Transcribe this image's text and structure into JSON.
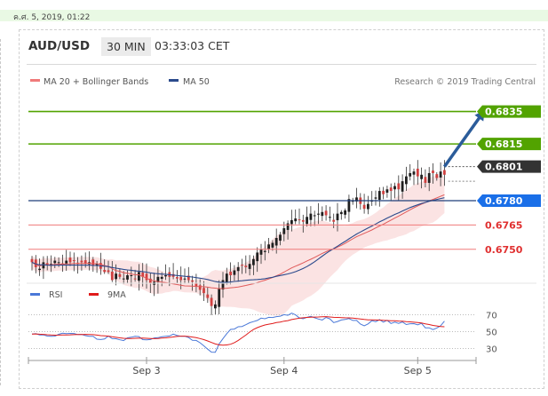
{
  "timestamp": "ค.ศ. 5, 2019, 01:22",
  "header": {
    "symbol": "AUD/USD",
    "timeframe": "30 MIN",
    "clock": "03:33:03 CET"
  },
  "legend": {
    "ma20_label": "MA 20 + Bollinger Bands",
    "ma50_label": "MA 50",
    "credit": "Research © 2019 Trading Central"
  },
  "colors": {
    "resistance": "#52a300",
    "support": "#f07a7a",
    "pivot": "#1a6fe8",
    "ma50": "#2b4a8c",
    "ma20": "#e05a5a",
    "band": "#fbe3e3",
    "rsi": "#4a78d8",
    "rsi_ma": "#e01b1b",
    "arrow": "#2b5c9a",
    "current_badge": "#333333"
  },
  "chart_data": [
    {
      "type": "candlestick",
      "ylim": [
        0.6734,
        0.6843
      ],
      "x_tick_labels": [
        "Sep 3",
        "Sep 4",
        "Sep 5"
      ],
      "x_tick_positions": [
        30,
        66,
        101
      ],
      "n_bars": 109,
      "key_levels": [
        {
          "value": 0.6835,
          "label": "0.6835",
          "kind": "resistance"
        },
        {
          "value": 0.6815,
          "label": "0.6815",
          "kind": "resistance"
        },
        {
          "value": 0.6801,
          "label": "0.6801",
          "kind": "current"
        },
        {
          "value": 0.678,
          "label": "0.6780",
          "kind": "pivot"
        },
        {
          "value": 0.6765,
          "label": "0.6765",
          "kind": "support"
        },
        {
          "value": 0.675,
          "label": "0.6750",
          "kind": "support"
        }
      ],
      "arrow": {
        "from_bar": 108,
        "from_value": 0.6801,
        "to_bar": 118,
        "to_value": 0.6834
      },
      "close": [
        0.6742,
        0.6739,
        0.6738,
        0.6742,
        0.674,
        0.6741,
        0.6743,
        0.6742,
        0.6741,
        0.6743,
        0.6742,
        0.6743,
        0.6741,
        0.6742,
        0.6741,
        0.6742,
        0.674,
        0.6741,
        0.6738,
        0.6736,
        0.6736,
        0.6731,
        0.6735,
        0.6733,
        0.6732,
        0.6734,
        0.6734,
        0.6732,
        0.6736,
        0.6733,
        0.6731,
        0.6729,
        0.673,
        0.6733,
        0.6733,
        0.6734,
        0.6733,
        0.6733,
        0.6732,
        0.6731,
        0.6732,
        0.6731,
        0.673,
        0.6727,
        0.6725,
        0.6723,
        0.672,
        0.6715,
        0.6716,
        0.6726,
        0.6731,
        0.6735,
        0.6734,
        0.6737,
        0.6739,
        0.674,
        0.6739,
        0.6741,
        0.6744,
        0.6748,
        0.675,
        0.6749,
        0.6753,
        0.6754,
        0.6757,
        0.6759,
        0.6763,
        0.6766,
        0.6768,
        0.6769,
        0.6768,
        0.6767,
        0.677,
        0.6772,
        0.6771,
        0.6772,
        0.6773,
        0.6771,
        0.677,
        0.6767,
        0.6772,
        0.6773,
        0.6774,
        0.6781,
        0.678,
        0.6782,
        0.6778,
        0.6775,
        0.6778,
        0.678,
        0.6782,
        0.6786,
        0.6784,
        0.6787,
        0.6786,
        0.6789,
        0.6787,
        0.6792,
        0.6795,
        0.6797,
        0.6798,
        0.6795,
        0.6796,
        0.6791,
        0.6797,
        0.6797,
        0.6794,
        0.6798,
        0.6796
      ],
      "ma20": [
        0.6742,
        0.67405,
        0.673967,
        0.67405,
        0.67404,
        0.674033,
        0.674071,
        0.674087,
        0.674078,
        0.6741,
        0.674109,
        0.674125,
        0.674123,
        0.674129,
        0.674127,
        0.674137,
        0.674118,
        0.674111,
        0.674063,
        0.673995,
        0.673945,
        0.673805,
        0.673685,
        0.67364,
        0.67356,
        0.673525,
        0.673475,
        0.673425,
        0.673425,
        0.673325,
        0.67322,
        0.673107,
        0.673052,
        0.673009,
        0.672972,
        0.672948,
        0.672907,
        0.672863,
        0.672827,
        0.672788,
        0.672743,
        0.672737,
        0.672732,
        0.672708,
        0.672702,
        0.672691,
        0.672664,
        0.672629,
        0.672604,
        0.672574,
        0.672585,
        0.6726,
        0.672627,
        0.672648,
        0.672679,
        0.672722,
        0.672769,
        0.672824,
        0.672876,
        0.672947,
        0.673027,
        0.673094,
        0.673175,
        0.673265,
        0.673366,
        0.673468,
        0.673594,
        0.67373,
        0.673853,
        0.673959,
        0.674057,
        0.674161,
        0.674281,
        0.674387,
        0.674502,
        0.674624,
        0.674749,
        0.674854,
        0.674953,
        0.675037,
        0.675137,
        0.675246,
        0.675364,
        0.675513,
        0.675648,
        0.675777,
        0.675883,
        0.675986,
        0.676092,
        0.676194,
        0.676318,
        0.676442,
        0.676546,
        0.676676,
        0.676799,
        0.676926,
        0.677046,
        0.677172,
        0.677307,
        0.677435,
        0.677562,
        0.677677,
        0.677788,
        0.677883,
        0.677988,
        0.67808,
        0.67817,
        0.678271,
        0.678361
      ],
      "ma50": [
        0.6742,
        0.674092,
        0.674039,
        0.674047,
        0.674026,
        0.674015,
        0.674018,
        0.674024,
        0.674022,
        0.674027,
        0.674027,
        0.674031,
        0.674025,
        0.674024,
        0.674019,
        0.674021,
        0.674008,
        0.674001,
        0.673982,
        0.673957,
        0.673931,
        0.673875,
        0.673837,
        0.673799,
        0.673759,
        0.673731,
        0.673705,
        0.67367,
        0.673654,
        0.673625,
        0.673589,
        0.673546,
        0.673515,
        0.673495,
        0.673473,
        0.673458,
        0.673434,
        0.673411,
        0.673386,
        0.673359,
        0.673337,
        0.673312,
        0.673289,
        0.673254,
        0.67322,
        0.673182,
        0.673135,
        0.673069,
        0.673011,
        0.672971,
        0.672956,
        0.672962,
        0.672986,
        0.673019,
        0.673041,
        0.673063,
        0.673089,
        0.673107,
        0.673121,
        0.673135,
        0.673159,
        0.673187,
        0.673233,
        0.673275,
        0.673334,
        0.673383,
        0.673431,
        0.673484,
        0.673543,
        0.673618,
        0.673713,
        0.673817,
        0.673935,
        0.674077,
        0.674234,
        0.674402,
        0.674579,
        0.67475,
        0.674903,
        0.675044,
        0.675192,
        0.675342,
        0.675486,
        0.675647,
        0.675794,
        0.675939,
        0.676069,
        0.676193,
        0.676313,
        0.676437,
        0.67656,
        0.676691,
        0.676803,
        0.676925,
        0.677038,
        0.677153,
        0.677252,
        0.677364,
        0.677472,
        0.677574,
        0.677664,
        0.677743,
        0.677823,
        0.677889,
        0.677961,
        0.678023,
        0.678076,
        0.678133,
        0.678181
      ]
    },
    {
      "type": "line",
      "yticks": [
        70,
        50,
        30
      ],
      "ylim": [
        20,
        80
      ],
      "series": [
        {
          "name": "RSI",
          "values": [
            47.1,
            47.6,
            46,
            46.1,
            44.7,
            44.4,
            44.6,
            46.8,
            48.1,
            47.7,
            47.9,
            47.8,
            46.5,
            46.7,
            45.3,
            44.4,
            44.5,
            41.1,
            40.6,
            41.3,
            44.7,
            41.7,
            41.6,
            40.3,
            39.4,
            42.6,
            43.4,
            44.4,
            44.1,
            40.5,
            40.3,
            40.6,
            42.5,
            42.8,
            43.9,
            44.5,
            44.8,
            47.1,
            45.4,
            44.4,
            44.5,
            43,
            39.7,
            39.6,
            36.8,
            33.2,
            29.3,
            25.7,
            25.6,
            35.4,
            41.7,
            47.6,
            52.6,
            53.1,
            55.8,
            56.1,
            58.2,
            60.5,
            61.9,
            63.3,
            66,
            65.3,
            66.9,
            66.7,
            67.8,
            68.3,
            70.1,
            69.4,
            71.9,
            69.9,
            66.3,
            65.3,
            67,
            68.1,
            66.4,
            64.9,
            63.8,
            66.8,
            65.2,
            60.7,
            62,
            63.8,
            64.4,
            65.5,
            63.3,
            63.3,
            58.9,
            56.9,
            59.2,
            62.9,
            61.8,
            64.2,
            61.3,
            63.5,
            59.7,
            61.3,
            59.8,
            61.5,
            58.4,
            59.4,
            59.5,
            58.1,
            59.8,
            54.5,
            54.5,
            52.4,
            54.3,
            56.9,
            62.4
          ]
        },
        {
          "name": "9MA",
          "values": [
            47.1,
            47.3,
            46.9,
            46.7,
            46.3,
            46,
            45.8,
            45.9,
            46.1,
            46.1,
            46.2,
            46.4,
            46.5,
            46.6,
            46.7,
            46.6,
            46.4,
            45.9,
            45.3,
            44.9,
            44.6,
            43.9,
            43.3,
            42.6,
            42.1,
            41.9,
            41.9,
            42.1,
            42.2,
            42.3,
            42.1,
            41.9,
            41.7,
            41.9,
            42.3,
            42.6,
            43.2,
            43.7,
            44.3,
            44.6,
            44.6,
            44.2,
            43.6,
            42.8,
            41.8,
            40.5,
            38.9,
            37.2,
            35.4,
            34.3,
            34,
            34.2,
            35.1,
            37,
            39.6,
            42.7,
            45.9,
            49.5,
            52.5,
            54.7,
            56.4,
            57.9,
            58.8,
            59.6,
            60.7,
            61.4,
            62.4,
            63.1,
            64.3,
            65.2,
            65.9,
            66.4,
            66.8,
            67.1,
            67.3,
            67.4,
            67.6,
            67.8,
            67.4,
            67,
            66.8,
            66.6,
            66.4,
            66.3,
            66.1,
            65.6,
            65,
            64.4,
            64,
            63.9,
            63.8,
            63.7,
            63.4,
            63.2,
            62.9,
            62.8,
            62.5,
            62.3,
            61.9,
            61.6,
            61.2,
            60.7,
            60.2,
            59.3,
            58.4,
            57.4,
            56.7,
            56.1,
            55.8
          ]
        }
      ]
    }
  ]
}
